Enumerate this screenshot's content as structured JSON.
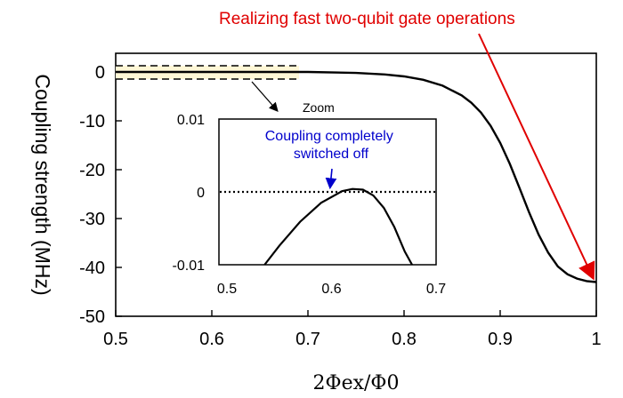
{
  "chart_data": [
    {
      "type": "line",
      "xlabel": "2Φex/Φ0",
      "ylabel": "Coupling strength (MHz)",
      "xlim": [
        0.5,
        1.0
      ],
      "ylim": [
        -50,
        5
      ],
      "xticks": [
        "0.5",
        "0.6",
        "0.7",
        "0.8",
        "0.9",
        "1"
      ],
      "yticks": [
        "0",
        "-10",
        "-20",
        "-30",
        "-40",
        "-50"
      ],
      "grid": false,
      "series": [
        {
          "x": [
            0.5,
            0.55,
            0.6,
            0.65,
            0.7,
            0.75,
            0.78,
            0.8,
            0.82,
            0.84,
            0.86,
            0.87,
            0.88,
            0.89,
            0.9,
            0.91,
            0.92,
            0.93,
            0.94,
            0.95,
            0.96,
            0.97,
            0.98,
            0.99,
            1.0
          ],
          "y": [
            0.0,
            0.0,
            0.0,
            0.0,
            0.0,
            -0.2,
            -0.5,
            -0.9,
            -1.6,
            -2.8,
            -4.8,
            -6.3,
            -8.3,
            -11.0,
            -14.5,
            -18.8,
            -23.7,
            -28.7,
            -33.3,
            -37.0,
            -39.8,
            -41.4,
            -42.3,
            -42.8,
            -43.0
          ]
        }
      ],
      "annotations": {
        "top": "Realizing fast two-qubit gate operations",
        "zoom": "Zoom"
      }
    },
    {
      "type": "line",
      "xlim": [
        0.5,
        0.7
      ],
      "ylim": [
        -0.01,
        0.01
      ],
      "xticks": [
        "0.5",
        "0.6",
        "0.7"
      ],
      "yticks": [
        "0.01",
        "0",
        "-0.01"
      ],
      "series": [
        {
          "x": [
            0.536,
            0.55,
            0.57,
            0.59,
            0.61,
            0.62,
            0.63,
            0.64,
            0.65,
            0.66,
            0.67,
            0.677
          ],
          "y": [
            -0.01,
            -0.0074,
            -0.0041,
            -0.0015,
            0.0001,
            0.0004,
            0.0003,
            -0.0005,
            -0.0022,
            -0.0048,
            -0.0082,
            -0.01
          ]
        }
      ],
      "reference_line_y": 0,
      "annotations": {
        "note": "Coupling completely switched off"
      }
    }
  ],
  "colors": {
    "curve": "#000000",
    "highlight_band": "#fff7d6",
    "red_annotation": "#e00000",
    "blue_annotation": "#0000cc"
  }
}
